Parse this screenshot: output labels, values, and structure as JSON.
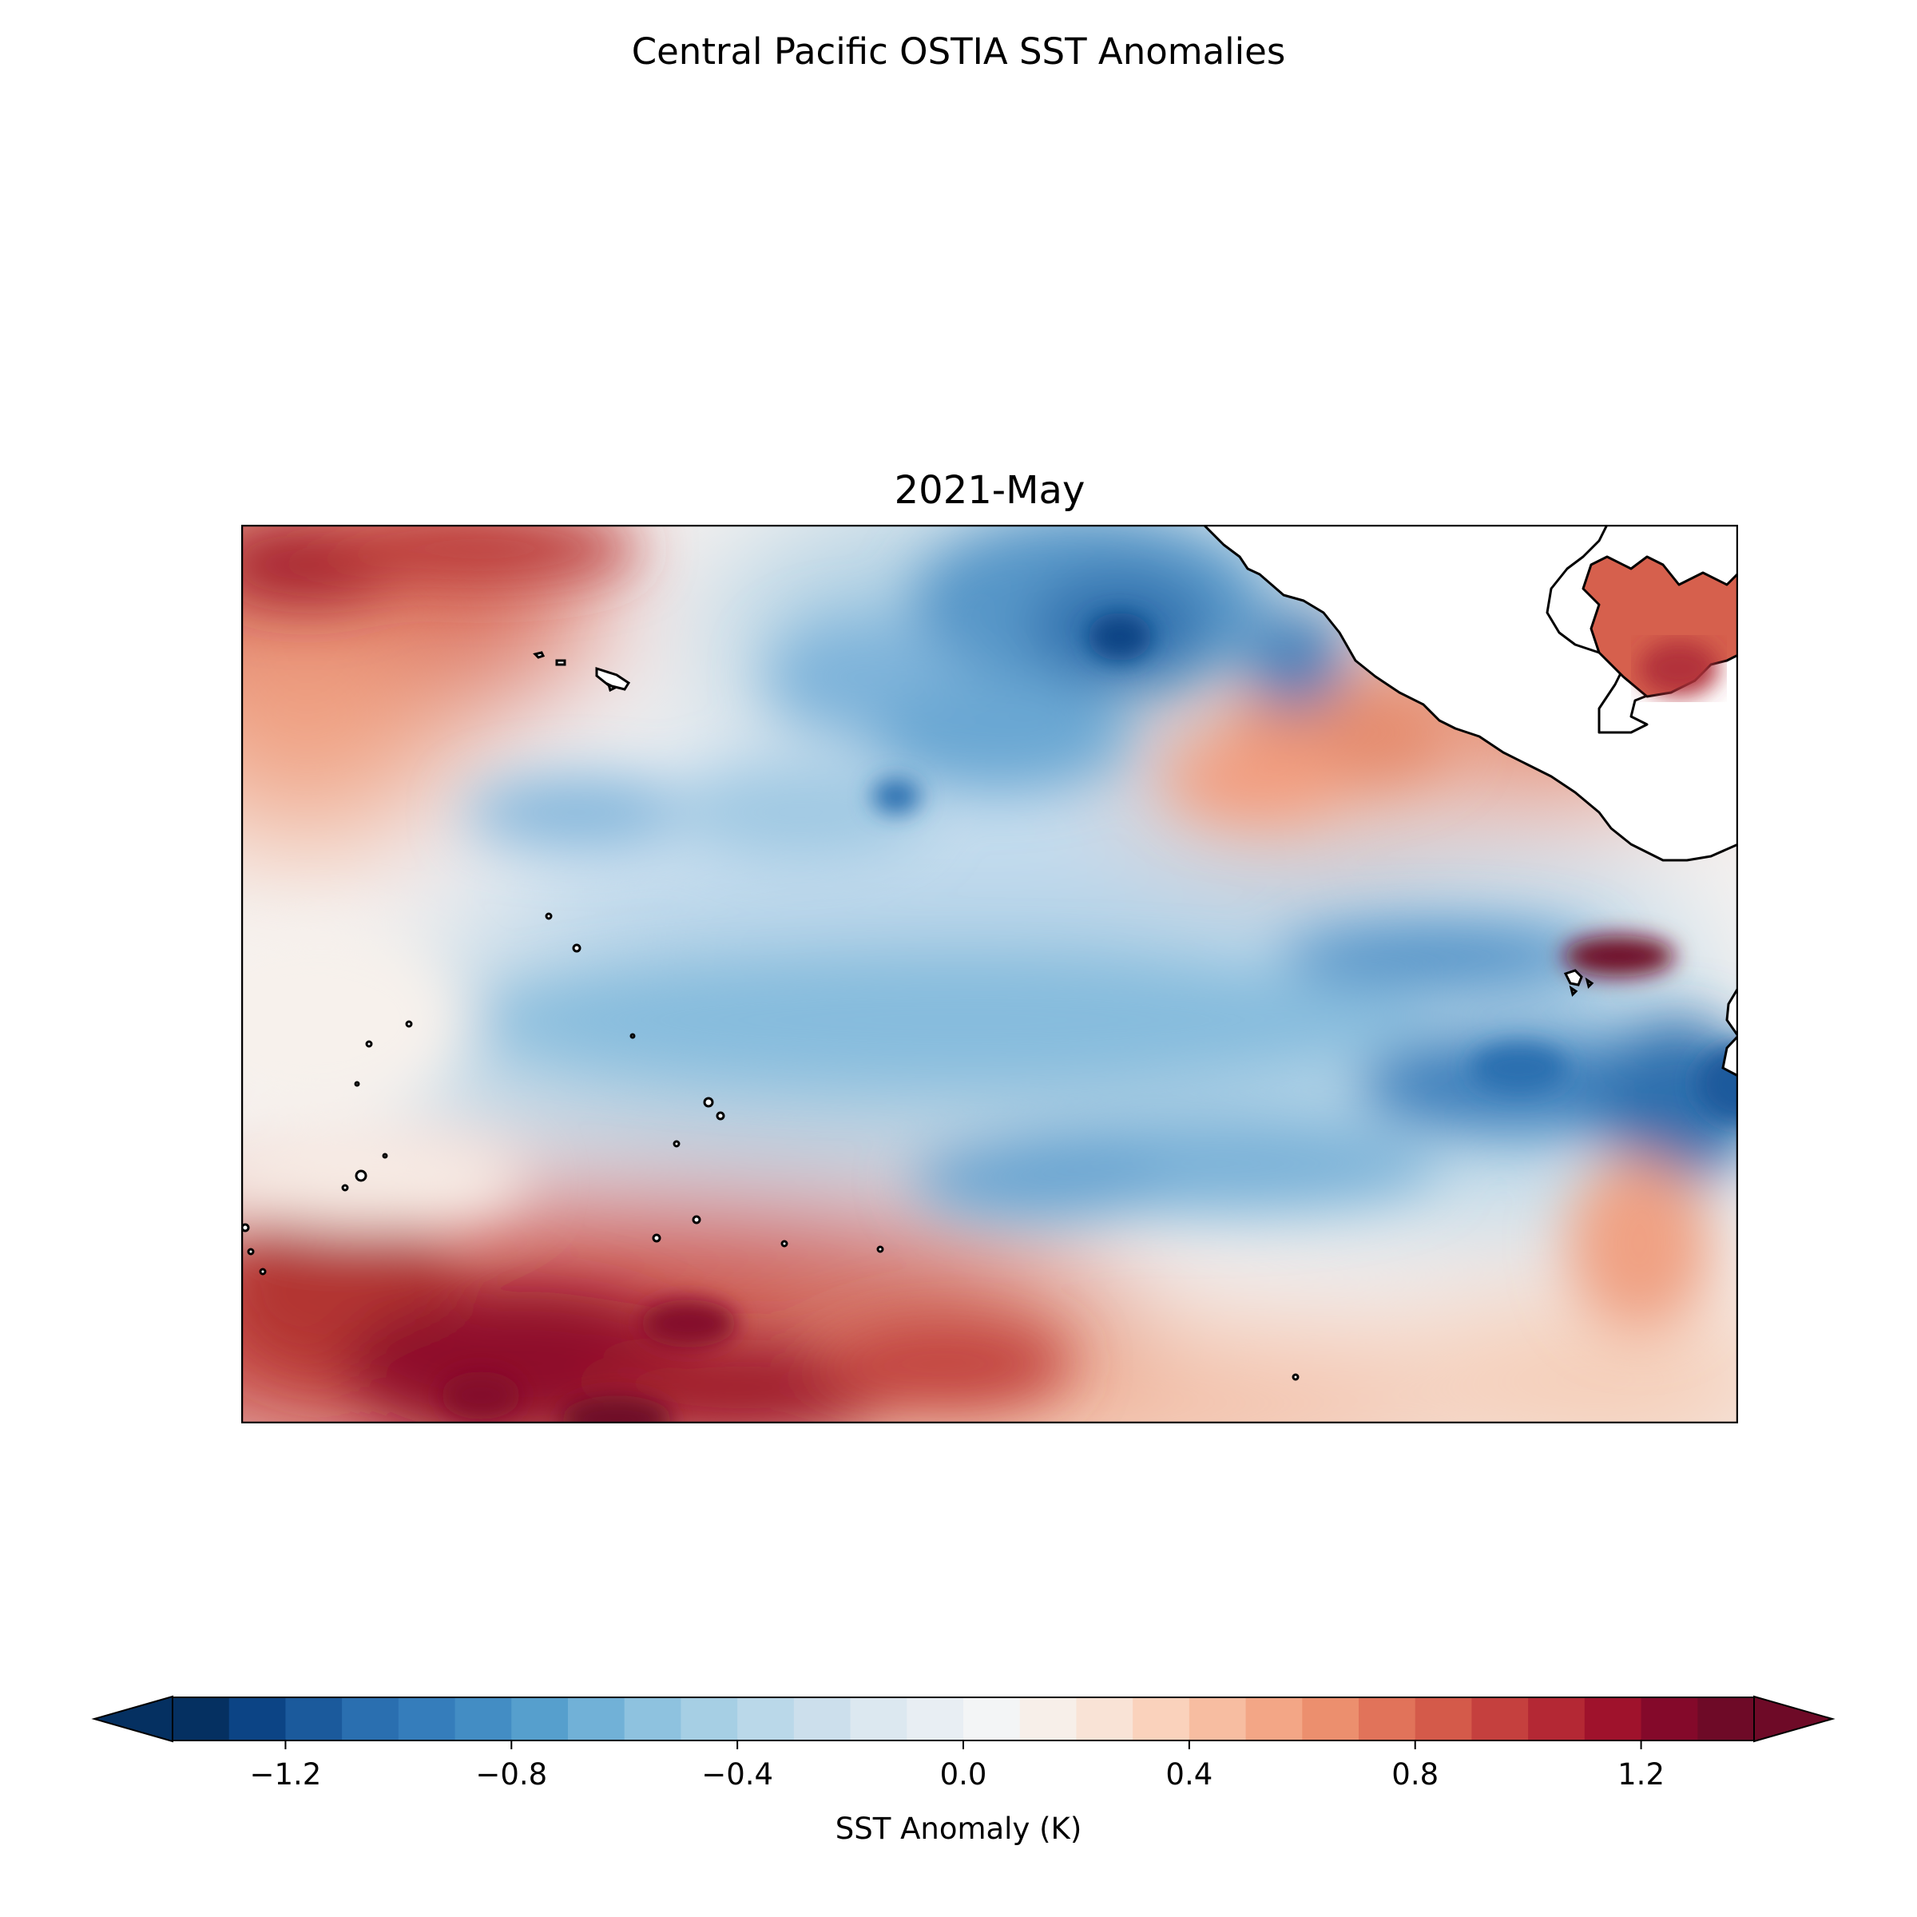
{
  "title": "Central Pacific OSTIA SST Anomalies",
  "panel": {
    "title": "2021-May"
  },
  "colorbar": {
    "label": "SST Anomaly (K)",
    "levels": [
      -1.5,
      -1.4,
      -1.3,
      -1.2,
      -1.1,
      -1.0,
      -0.9,
      -0.8,
      -0.7,
      -0.6,
      -0.5,
      -0.4,
      -0.3,
      -0.2,
      -0.1,
      0.0,
      0.1,
      0.2,
      0.3,
      0.4,
      0.5,
      0.6,
      0.7,
      0.8,
      0.9,
      1.0,
      1.1,
      1.2,
      1.3,
      1.4,
      1.5
    ],
    "ticks": [
      -1.2,
      -0.8,
      -0.4,
      0.0,
      0.4,
      0.8,
      1.2
    ],
    "tick_labels": [
      "−1.2",
      "−0.8",
      "−0.4",
      "0.0",
      "0.4",
      "0.8",
      "1.2"
    ],
    "extend": "both",
    "colors": [
      "#053061",
      "#0c4485",
      "#1b5a9c",
      "#2a6fb0",
      "#357dbb",
      "#438dc4",
      "#569fcd",
      "#71b1d7",
      "#8ec2df",
      "#a6cfe4",
      "#bad8e9",
      "#ccdfec",
      "#dce8f0",
      "#e8eef3",
      "#f3f5f6",
      "#f7efe9",
      "#f9e3d6",
      "#fad2bc",
      "#f7bda1",
      "#f3a686",
      "#ec8f6e",
      "#e1735a",
      "#d45a4a",
      "#c5403e",
      "#b42834",
      "#9f122c",
      "#84092a",
      "#6e0a27"
    ]
  },
  "chart_data": {
    "type": "heatmap",
    "title": "2021-May",
    "colorbar_label": "SST Anomaly (K)",
    "value_range": [
      -1.5,
      1.5
    ],
    "features": [
      "Hawaiian Islands",
      "Mexico",
      "Central America",
      "Gulf of Mexico",
      "Galapagos Islands"
    ],
    "anomaly_regions": [
      {
        "area": "northwest corner",
        "anomaly": 1.3
      },
      {
        "area": "north-central, off Baja California",
        "anomaly": -1.0
      },
      {
        "area": "off southern Mexico coast",
        "anomaly": 0.8
      },
      {
        "area": "Gulf of Mexico",
        "anomaly": 1.0
      },
      {
        "area": "equatorial central and east Pacific band",
        "anomaly": -0.7
      },
      {
        "area": "near Galapagos",
        "anomaly": 1.5
      },
      {
        "area": "off Ecuador/Peru coast",
        "anomaly": -1.1
      },
      {
        "area": "southern subtropics",
        "anomaly": 1.2
      },
      {
        "area": "western equator",
        "anomaly": 0.1
      }
    ]
  }
}
